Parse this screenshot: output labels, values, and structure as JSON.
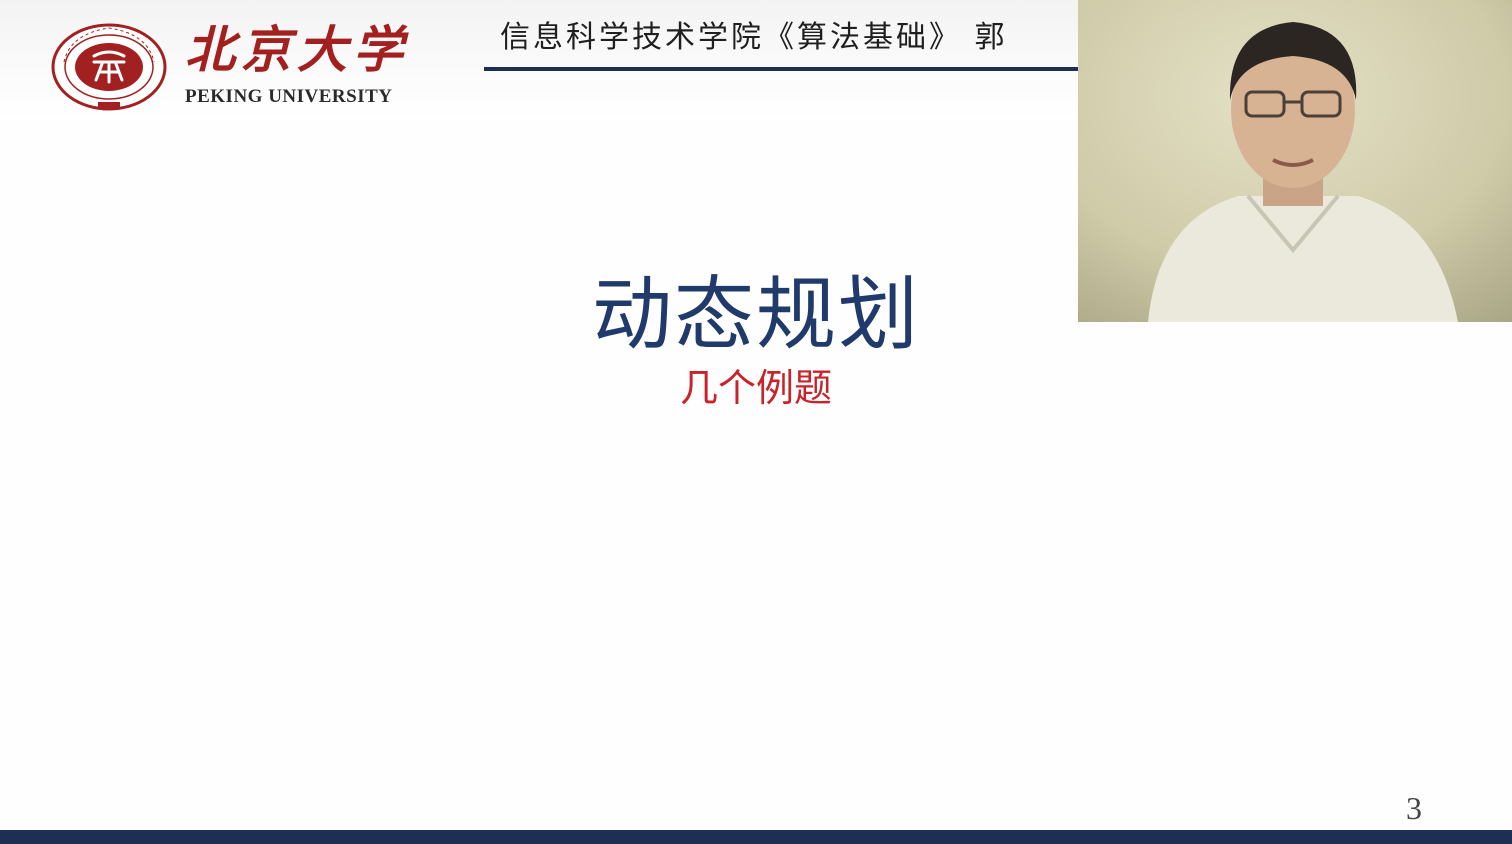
{
  "header": {
    "university_name_cn": "北京大学",
    "university_name_en": "PEKING UNIVERSITY",
    "seal_text": "PEKING UNIVERSITY",
    "seal_year": "1898",
    "course_title": "信息科学技术学院《算法基础》 郭"
  },
  "slide": {
    "title": "动态规划",
    "subtitle": "几个例题",
    "page_number": "3"
  },
  "colors": {
    "title": "#1f3a6b",
    "subtitle": "#c8222a",
    "brand_red": "#a32020",
    "rule_navy": "#1d2f55"
  },
  "video": {
    "content": "presenter-webcam"
  }
}
